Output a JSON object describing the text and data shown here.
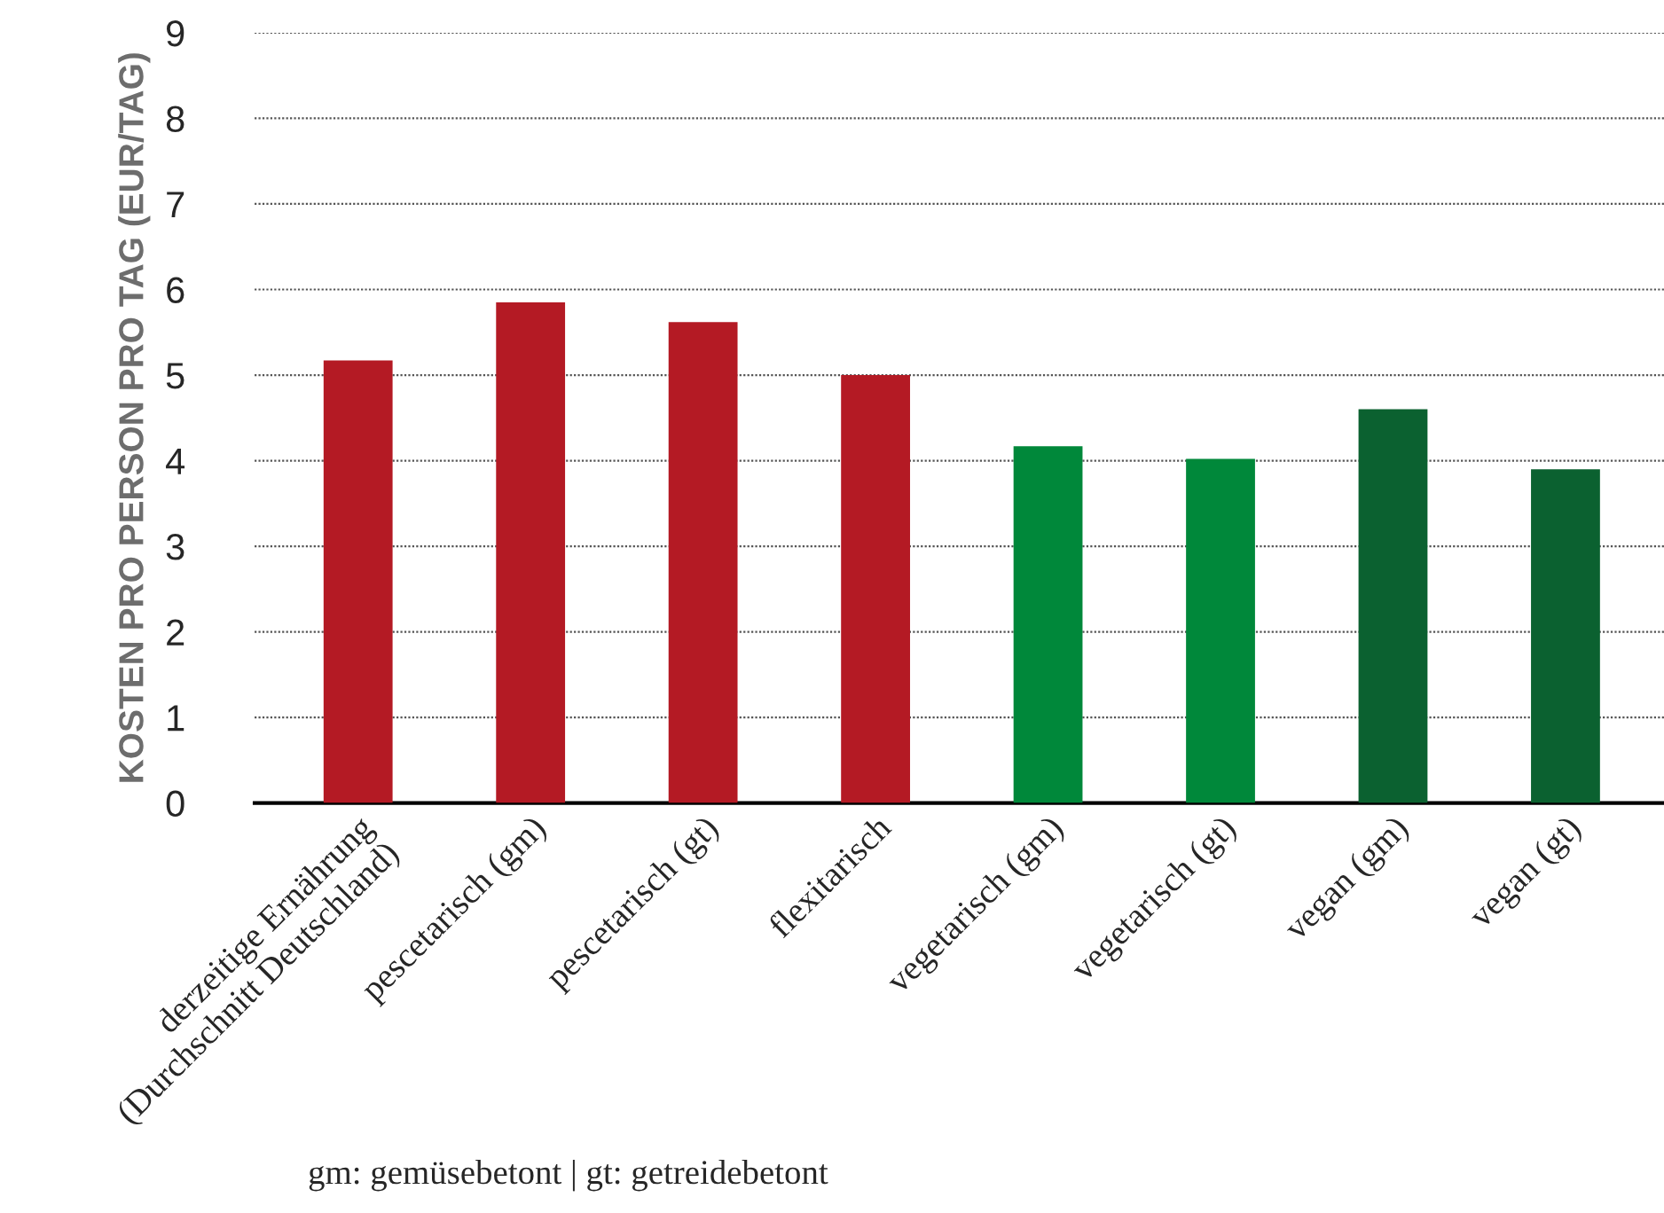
{
  "chart_data": {
    "type": "bar",
    "ylabel": "KOSTEN PRO PERSON PRO TAG (EUR/TAG)",
    "categories": [
      "derzeitige Ernährung\n(Durchschnitt Deutschland)",
      "pescetarisch (gm)",
      "pescetarisch (gt)",
      "flexitarisch",
      "vegetarisch (gm)",
      "vegetarisch (gt)",
      "vegan (gm)",
      "vegan (gt)"
    ],
    "values": [
      5.17,
      5.85,
      5.62,
      5.0,
      4.17,
      4.02,
      4.6,
      3.9
    ],
    "colors": [
      "#b41a24",
      "#b41a24",
      "#b41a24",
      "#b41a24",
      "#00883a",
      "#00883a",
      "#0b6130",
      "#0b6130"
    ],
    "ylim": [
      0,
      9
    ],
    "yticks": [
      0,
      1,
      2,
      3,
      4,
      5,
      6,
      7,
      8,
      9
    ],
    "grid": "y",
    "annotations": [
      "gm: gemüsebetont | gt: getreidebetont"
    ]
  }
}
